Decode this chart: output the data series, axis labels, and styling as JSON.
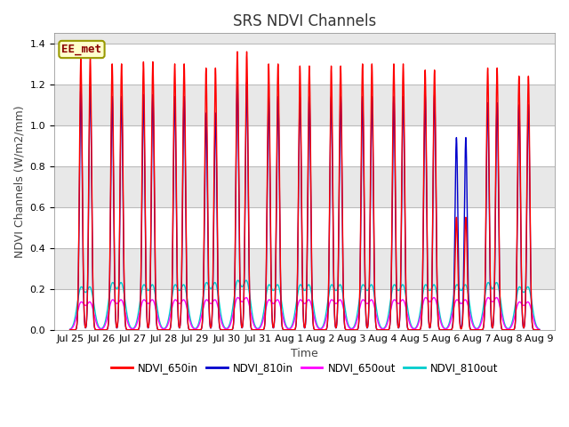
{
  "title": "SRS NDVI Channels",
  "xlabel": "Time",
  "ylabel": "NDVI Channels (W/m2/mm)",
  "ylim": [
    0,
    1.45
  ],
  "yticks": [
    0.0,
    0.2,
    0.4,
    0.6,
    0.8,
    1.0,
    1.2,
    1.4
  ],
  "xtick_labels": [
    "Jul 25",
    "Jul 26",
    "Jul 27",
    "Jul 28",
    "Jul 29",
    "Jul 30",
    "Jul 31",
    "Aug 1",
    "Aug 2",
    "Aug 3",
    "Aug 4",
    "Aug 5",
    "Aug 6",
    "Aug 7",
    "Aug 8",
    "Aug 9"
  ],
  "colors": {
    "NDVI_650in": "#ff0000",
    "NDVI_810in": "#0000cc",
    "NDVI_650out": "#ff00ff",
    "NDVI_810out": "#00cccc"
  },
  "legend_label_box": "EE_met",
  "peak_650in": [
    1.33,
    1.3,
    1.31,
    1.3,
    1.28,
    1.36,
    1.3,
    1.29,
    1.29,
    1.3,
    1.3,
    1.27,
    0.55,
    1.28,
    1.24
  ],
  "peak_810in": [
    1.19,
    1.14,
    1.15,
    1.14,
    1.06,
    1.21,
    1.14,
    1.14,
    1.14,
    1.14,
    1.14,
    1.15,
    0.94,
    1.11,
    1.1
  ],
  "peak_650out": [
    0.13,
    0.14,
    0.14,
    0.14,
    0.14,
    0.15,
    0.14,
    0.14,
    0.14,
    0.14,
    0.14,
    0.15,
    0.14,
    0.15,
    0.13
  ],
  "peak_810out": [
    0.2,
    0.22,
    0.21,
    0.21,
    0.22,
    0.23,
    0.21,
    0.21,
    0.21,
    0.21,
    0.21,
    0.21,
    0.21,
    0.22,
    0.2
  ],
  "bg_color": "#ffffff",
  "plot_bg": "#e8e8e8",
  "band_color": "#ffffff",
  "grid_color": "#bbbbbb",
  "linewidth_in": 1.0,
  "linewidth_out": 1.0,
  "title_fontsize": 12,
  "label_fontsize": 9,
  "tick_fontsize": 8
}
